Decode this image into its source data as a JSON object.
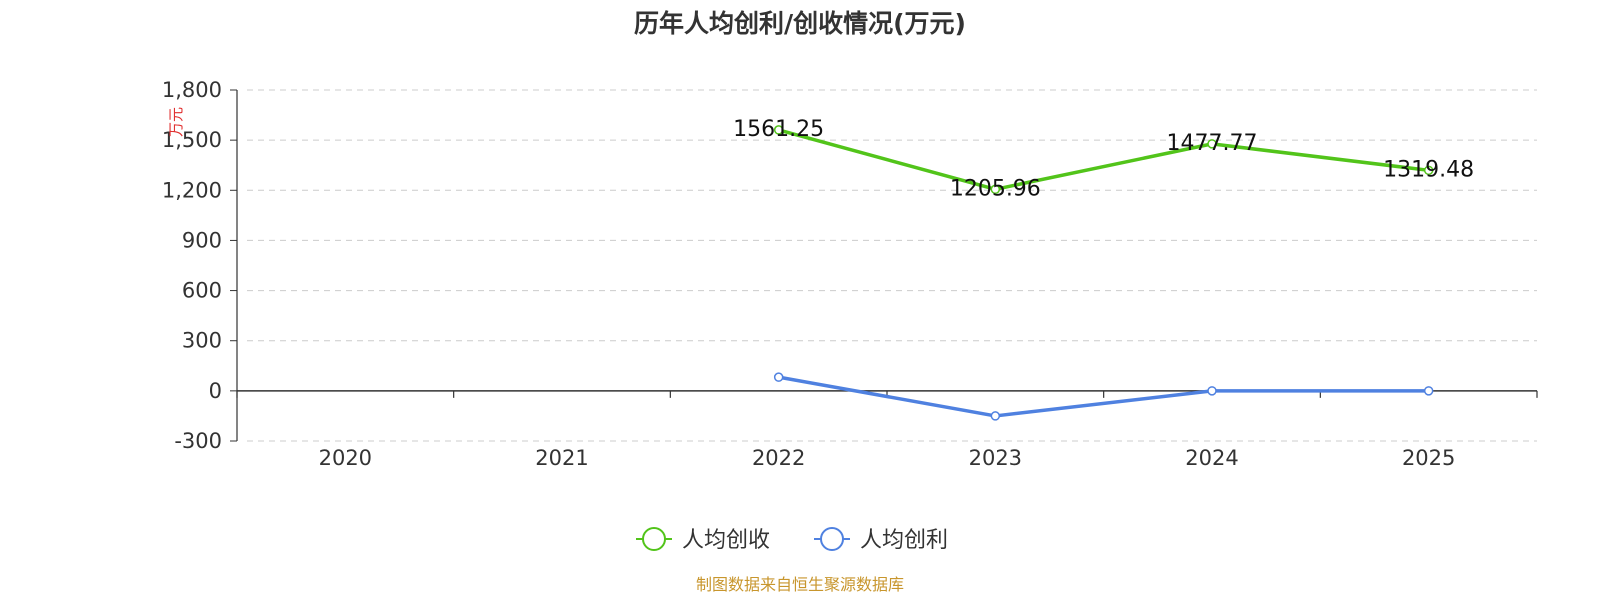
{
  "chart_data": {
    "type": "line",
    "title": "历年人均创利/创收情况(万元)",
    "ylabel": "万元",
    "categories": [
      "2020",
      "2021",
      "2022",
      "2023",
      "2024",
      "2025"
    ],
    "ylim": [
      -300,
      1800
    ],
    "yticks": [
      -300,
      0,
      300,
      600,
      900,
      1200,
      1500,
      1800
    ],
    "ytick_labels": [
      "-300",
      "0",
      "300",
      "600",
      "900",
      "1,200",
      "1,500",
      "1,800"
    ],
    "grid": true,
    "legend_position": "bottom",
    "series": [
      {
        "name": "人均创收",
        "color": "#52c41a",
        "values": [
          null,
          null,
          1561.25,
          1205.96,
          1477.77,
          1319.48
        ],
        "labels": [
          null,
          null,
          "1561.25",
          "1205.96",
          "1477.77",
          "1319.48"
        ]
      },
      {
        "name": "人均创利",
        "color": "#4f81e0",
        "values": [
          null,
          null,
          82,
          -150,
          0,
          0
        ],
        "labels": [
          null,
          null,
          null,
          null,
          null,
          null
        ]
      }
    ]
  },
  "source": {
    "text": "制图数据来自恒生聚源数据库",
    "color": "#c8962d"
  }
}
